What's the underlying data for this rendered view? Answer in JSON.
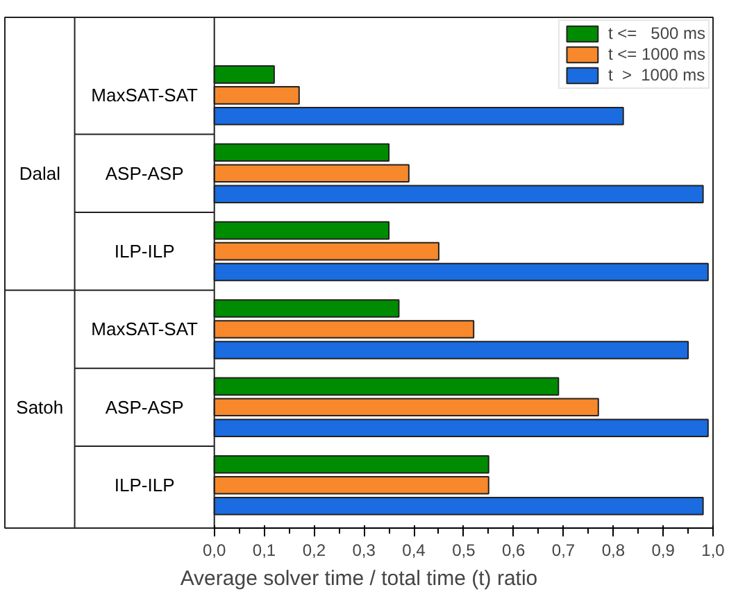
{
  "chart_data": {
    "type": "bar",
    "orientation": "horizontal",
    "xlabel": "Average solver time / total time (t) ratio",
    "categories": [
      "MaxSAT-SAT",
      "ASP-ASP",
      "ILP-ILP",
      "MaxSAT-SAT",
      "ASP-ASP",
      "ILP-ILP"
    ],
    "annotations": [
      "Dalal",
      "Satoh"
    ],
    "series": [
      {
        "name": "t <=   500 ms",
        "color": "#008c00",
        "values": [
          0.12,
          0.35,
          0.35,
          0.37,
          0.69,
          0.55
        ]
      },
      {
        "name": "t <= 1000 ms",
        "color": "#f7882b",
        "values": [
          0.17,
          0.39,
          0.45,
          0.52,
          0.77,
          0.55
        ]
      },
      {
        "name": "t  >  1000 ms",
        "color": "#1a6ce0",
        "values": [
          0.82,
          0.98,
          0.99,
          0.95,
          0.99,
          0.98
        ]
      }
    ],
    "xlim": [
      0,
      1
    ],
    "xticks": [
      {
        "value": 0,
        "label": "0,0"
      },
      {
        "value": 0.1,
        "label": "0,1"
      },
      {
        "value": 0.2,
        "label": "0,2"
      },
      {
        "value": 0.3,
        "label": "0,3"
      },
      {
        "value": 0.4,
        "label": "0,4"
      },
      {
        "value": 0.5,
        "label": "0,5"
      },
      {
        "value": 0.6,
        "label": "0,6"
      },
      {
        "value": 0.7,
        "label": "0,7"
      },
      {
        "value": 0.8,
        "label": "0,8"
      },
      {
        "value": 0.9,
        "label": "0,9"
      },
      {
        "value": 1.0,
        "label": "1,0"
      }
    ],
    "legend": "top right",
    "grid": false
  }
}
